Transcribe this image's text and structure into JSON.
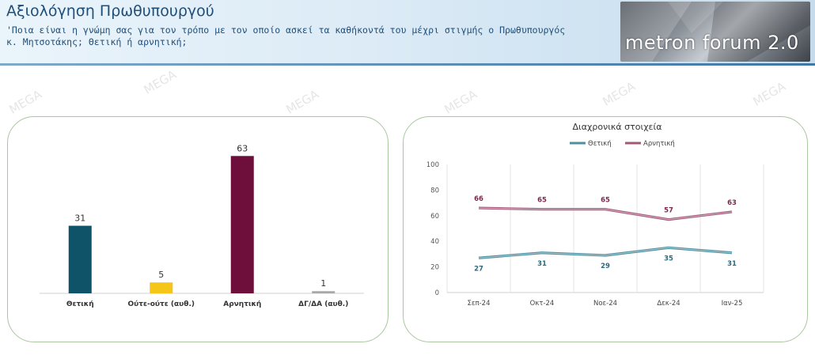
{
  "header": {
    "title": "Αξιολόγηση Πρωθυπουργού",
    "subtitle": "'Ποια είναι η γνώμη σας για τον τρόπο με τον οποίο ασκεί τα καθήκοντά του μέχρι στιγμής ο Πρωθυπουργός κ. Μητσοτάκης; Θετική ή αρνητική;",
    "logo_text": "metron forum 2.0",
    "watermark": "MEGA"
  },
  "chart_data": [
    {
      "type": "bar",
      "title": "",
      "categories": [
        "Θετική",
        "Ούτε-ούτε (αυθ.)",
        "Αρνητική",
        "ΔΓ/ΔΑ (αυθ.)"
      ],
      "values": [
        31,
        5,
        63,
        1
      ],
      "colors": [
        "#0f5368",
        "#f5c518",
        "#6e0e3a",
        "#a8a8a8"
      ],
      "ylim": [
        0,
        70
      ],
      "grid": false,
      "legend": "none"
    },
    {
      "type": "line",
      "title": "Διαχρονικά στοιχεία",
      "categories": [
        "Σεπ-24",
        "Οκτ-24",
        "Νοε-24",
        "Δεκ-24",
        "Ιαν-25"
      ],
      "series": [
        {
          "name": "Θετική",
          "values": [
            27,
            31,
            29,
            35,
            31
          ],
          "color": "#4e8fa0"
        },
        {
          "name": "Αρνητική",
          "values": [
            66,
            65,
            65,
            57,
            63
          ],
          "color": "#a3587a"
        }
      ],
      "yticks": [
        "0",
        "20",
        "40",
        "60",
        "80",
        "100"
      ],
      "ylim": [
        0,
        100
      ],
      "grid": true,
      "legend": "top"
    }
  ]
}
